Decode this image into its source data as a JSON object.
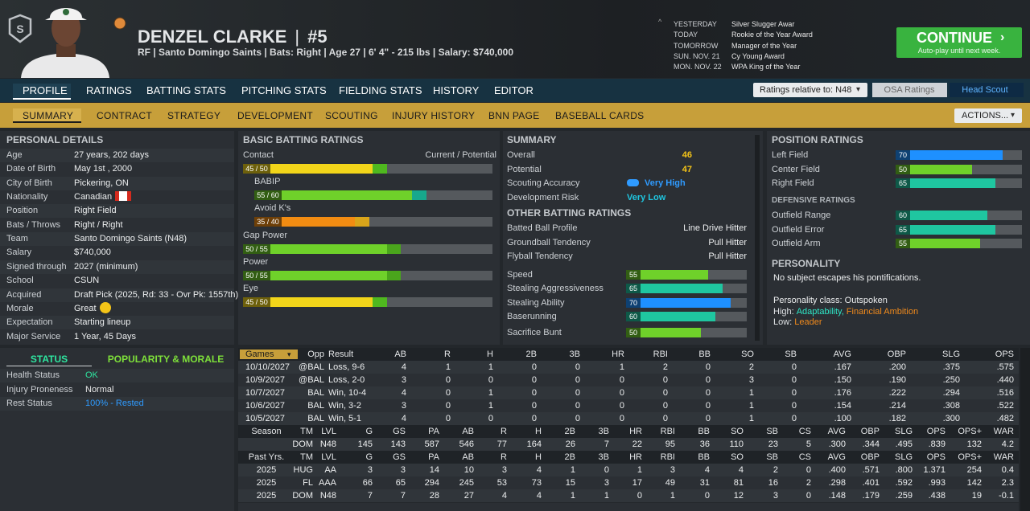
{
  "header": {
    "name": "DENZEL CLARKE",
    "separator": "|",
    "number": "#5",
    "subtitle": "RF | Santo Domingo Saints | Bats: Right | Age 27 | 6' 4\" - 215 lbs | Salary: $740,000"
  },
  "schedule": [
    {
      "day": "YESTERDAY",
      "event": "Silver Slugger Awar"
    },
    {
      "day": "TODAY",
      "event": "Rookie of the Year Award"
    },
    {
      "day": "TOMORROW",
      "event": "Manager of the Year"
    },
    {
      "day": "SUN. NOV. 21",
      "event": "Cy Young Award"
    },
    {
      "day": "MON. NOV. 22",
      "event": "WPA King of the Year"
    }
  ],
  "continue_button": {
    "label": "CONTINUE",
    "sublabel": "Auto-play until next week."
  },
  "tabs": [
    "PROFILE",
    "RATINGS",
    "BATTING STATS",
    "PITCHING STATS",
    "FIELDING STATS",
    "HISTORY",
    "EDITOR"
  ],
  "ratings_dropdown": "Ratings relative to: N48",
  "rating_sources": [
    "OSA Ratings",
    "Head Scout"
  ],
  "subtabs": [
    "SUMMARY",
    "CONTRACT",
    "STRATEGY",
    "DEVELOPMENT",
    "SCOUTING",
    "INJURY HISTORY",
    "BNN PAGE",
    "BASEBALL CARDS"
  ],
  "actions_button": "ACTIONS...",
  "personal_details": {
    "title": "PERSONAL DETAILS",
    "rows": [
      {
        "label": "Age",
        "value": "27 years, 202 days"
      },
      {
        "label": "Date of Birth",
        "value": "May 1st , 2000"
      },
      {
        "label": "City of Birth",
        "value": "Pickering, ON"
      },
      {
        "label": "Nationality",
        "value": "Canadian"
      },
      {
        "label": "Position",
        "value": "Right Field"
      },
      {
        "label": "Bats / Throws",
        "value": "Right / Right"
      },
      {
        "label": "Team",
        "value": "Santo Domingo Saints (N48)"
      },
      {
        "label": "Salary",
        "value": "$740,000"
      },
      {
        "label": "Signed through",
        "value": "2027 (minimum)"
      },
      {
        "label": "School",
        "value": "CSUN"
      },
      {
        "label": "Acquired",
        "value": "Draft Pick (2025, Rd: 33 - Ovr Pk: 1557th)"
      },
      {
        "label": "Morale",
        "value": "Great"
      },
      {
        "label": "Expectation",
        "value": "Starting lineup"
      },
      {
        "label": "Major Service",
        "value": "1 Year, 45 Days"
      }
    ]
  },
  "status": {
    "tabs": [
      "STATUS",
      "POPULARITY & MORALE"
    ],
    "rows": [
      {
        "label": "Health Status",
        "value": "OK",
        "color": "#2ee6a0"
      },
      {
        "label": "Injury Proneness",
        "value": "Normal",
        "color": "#e6e6e6"
      },
      {
        "label": "Rest Status",
        "value": "100% - Rested",
        "color": "#2f9bff"
      }
    ]
  },
  "batting_ratings": {
    "title": "BASIC BATTING RATINGS",
    "column_label": "Current / Potential",
    "ratings": [
      {
        "name": "Contact",
        "label": "45 / 50",
        "current": 45,
        "potential": 50,
        "color": "#f2d51a",
        "potential_color": "#4fb81f"
      },
      {
        "name": "BABIP",
        "label": "55 / 60",
        "current": 55,
        "potential": 60,
        "color": "#6fd12a",
        "potential_color": "#17a88c"
      },
      {
        "name": "Avoid K's",
        "label": "35 / 40",
        "current": 35,
        "potential": 40,
        "color": "#f28c12",
        "potential_color": "#d9a51a"
      },
      {
        "name": "Gap Power",
        "label": "50 / 55",
        "current": 50,
        "potential": 55,
        "color": "#6fd12a",
        "potential_color": "#4aa51c"
      },
      {
        "name": "Power",
        "label": "50 / 55",
        "current": 50,
        "potential": 55,
        "color": "#6fd12a",
        "potential_color": "#4aa51c"
      },
      {
        "name": "Eye",
        "label": "45 / 50",
        "current": 45,
        "potential": 50,
        "color": "#f2d51a",
        "potential_color": "#4fb81f"
      }
    ]
  },
  "summary": {
    "title": "SUMMARY",
    "rows": [
      {
        "label": "Overall",
        "value": 46,
        "color": "#f5c518"
      },
      {
        "label": "Potential",
        "value": 47,
        "color": "#f5c518"
      },
      {
        "label": "Scouting Accuracy",
        "value": "Very High",
        "color": "#2f9bff"
      },
      {
        "label": "Development Risk",
        "value": "Very Low",
        "color": "#1fc6e0"
      }
    ]
  },
  "other_batting": {
    "title": "OTHER BATTING RATINGS",
    "text_rows": [
      {
        "label": "Batted Ball Profile",
        "value": "Line Drive Hitter"
      },
      {
        "label": "Groundball Tendency",
        "value": "Pull Hitter"
      },
      {
        "label": "Flyball Tendency",
        "value": "Pull Hitter"
      }
    ],
    "bar_rows": [
      {
        "label": "Speed",
        "value": 55,
        "color": "#6fd12a"
      },
      {
        "label": "Stealing Aggressiveness",
        "value": 65,
        "color": "#1fc6a0"
      },
      {
        "label": "Stealing Ability",
        "value": 70,
        "color": "#1e90ff"
      },
      {
        "label": "Baserunning",
        "value": 60,
        "color": "#1fc6a0"
      },
      {
        "label": "Sacrifice Bunt",
        "value": 50,
        "color": "#6fd12a"
      }
    ]
  },
  "position_ratings": {
    "title": "POSITION RATINGS",
    "positions": [
      {
        "label": "Left Field",
        "value": 70,
        "color": "#1e90ff"
      },
      {
        "label": "Center Field",
        "value": 50,
        "color": "#6fd12a"
      },
      {
        "label": "Right Field",
        "value": 65,
        "color": "#1fc6a0"
      }
    ],
    "defensive_title": "DEFENSIVE RATINGS",
    "defensive": [
      {
        "label": "Outfield Range",
        "value": 60,
        "color": "#1fc6a0"
      },
      {
        "label": "Outfield Error",
        "value": 65,
        "color": "#1fc6a0"
      },
      {
        "label": "Outfield Arm",
        "value": 55,
        "color": "#6fd12a"
      }
    ]
  },
  "personality": {
    "title": "PERSONALITY",
    "quote": "No subject escapes his pontifications.",
    "class": "Personality class: Outspoken",
    "high_label": "High:",
    "high": [
      {
        "text": "Adaptability,",
        "color": "#2ee6c6"
      },
      {
        "text": "Financial Ambition",
        "color": "#f08a1c"
      }
    ],
    "low_label": "Low:",
    "low": [
      {
        "text": "Leader",
        "color": "#f08a1c"
      }
    ]
  },
  "game_log": {
    "columns": [
      "Games",
      "Opp",
      "Result",
      "AB",
      "R",
      "H",
      "2B",
      "3B",
      "HR",
      "RBI",
      "BB",
      "SO",
      "SB",
      "AVG",
      "OBP",
      "SLG",
      "OPS"
    ],
    "rows": [
      [
        "10/10/2027",
        "@BAL",
        "Loss, 9-6",
        "4",
        "1",
        "1",
        "0",
        "0",
        "1",
        "2",
        "0",
        "2",
        "0",
        ".167",
        ".200",
        ".375",
        ".575"
      ],
      [
        "10/9/2027",
        "@BAL",
        "Loss, 2-0",
        "3",
        "0",
        "0",
        "0",
        "0",
        "0",
        "0",
        "0",
        "3",
        "0",
        ".150",
        ".190",
        ".250",
        ".440"
      ],
      [
        "10/7/2027",
        "BAL",
        "Win, 10-4",
        "4",
        "0",
        "1",
        "0",
        "0",
        "0",
        "0",
        "0",
        "1",
        "0",
        ".176",
        ".222",
        ".294",
        ".516"
      ],
      [
        "10/6/2027",
        "BAL",
        "Win, 3-2",
        "3",
        "0",
        "1",
        "0",
        "0",
        "0",
        "0",
        "0",
        "1",
        "0",
        ".154",
        ".214",
        ".308",
        ".522"
      ],
      [
        "10/5/2027",
        "BAL",
        "Win, 5-1",
        "4",
        "0",
        "0",
        "0",
        "0",
        "0",
        "0",
        "0",
        "1",
        "0",
        ".100",
        ".182",
        ".300",
        ".482"
      ]
    ]
  },
  "season": {
    "columns": [
      "Season",
      "TM",
      "LVL",
      "G",
      "GS",
      "PA",
      "AB",
      "R",
      "H",
      "2B",
      "3B",
      "HR",
      "RBI",
      "BB",
      "SO",
      "SB",
      "CS",
      "AVG",
      "OBP",
      "SLG",
      "OPS",
      "OPS+",
      "WAR"
    ],
    "rows": [
      [
        null,
        "DOM",
        "N48",
        "145",
        "143",
        "587",
        "546",
        "77",
        "164",
        "26",
        "7",
        "22",
        "95",
        "36",
        "110",
        "23",
        "5",
        ".300",
        ".344",
        ".495",
        ".839",
        "132",
        "4.2"
      ]
    ]
  },
  "past_years": {
    "columns": [
      "Past Yrs.",
      "TM",
      "LVL",
      "G",
      "GS",
      "PA",
      "AB",
      "R",
      "H",
      "2B",
      "3B",
      "HR",
      "RBI",
      "BB",
      "SO",
      "SB",
      "CS",
      "AVG",
      "OBP",
      "SLG",
      "OPS",
      "OPS+",
      "WAR"
    ],
    "rows": [
      [
        "2025",
        "HUG",
        "AA",
        "3",
        "3",
        "14",
        "10",
        "3",
        "4",
        "1",
        "0",
        "1",
        "3",
        "4",
        "4",
        "2",
        "0",
        ".400",
        ".571",
        ".800",
        "1.371",
        "254",
        "0.4"
      ],
      [
        "2025",
        "FL",
        "AAA",
        "66",
        "65",
        "294",
        "245",
        "53",
        "73",
        "15",
        "3",
        "17",
        "49",
        "31",
        "81",
        "16",
        "2",
        ".298",
        ".401",
        ".592",
        ".993",
        "142",
        "2.3"
      ],
      [
        "2025",
        "DOM",
        "N48",
        "7",
        "7",
        "28",
        "27",
        "4",
        "4",
        "1",
        "1",
        "0",
        "1",
        "0",
        "12",
        "3",
        "0",
        ".148",
        ".179",
        ".259",
        ".438",
        "19",
        "-0.1"
      ]
    ]
  }
}
